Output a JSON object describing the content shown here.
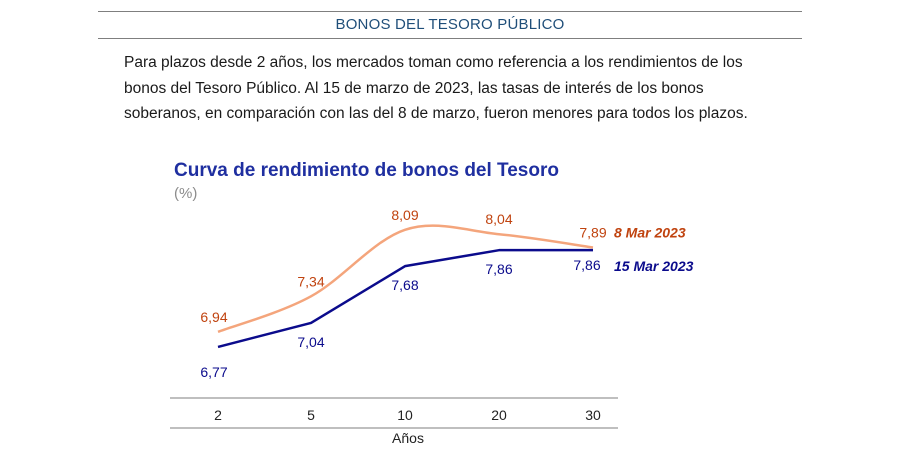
{
  "section": {
    "title": "BONOS DEL TESORO PÚBLICO"
  },
  "intro": {
    "text": "Para plazos desde 2 años, los mercados toman como referencia a los rendimientos de los bonos del Tesoro Público. Al 15 de marzo de 2023, las tasas de interés de los bonos soberanos, en comparación con las del 8 de marzo, fueron menores para todos los plazos."
  },
  "chart_data": {
    "type": "line",
    "title": "Curva de rendimiento de bonos del Tesoro",
    "unit": "(%)",
    "xlabel": "Años",
    "ylabel": "",
    "categories": [
      "2",
      "5",
      "10",
      "20",
      "30"
    ],
    "ylim": [
      6.6,
      8.2
    ],
    "grid": false,
    "series": [
      {
        "name": "8 Mar 2023",
        "values": [
          6.94,
          7.34,
          8.09,
          8.04,
          7.89
        ],
        "labels": [
          "6,94",
          "7,34",
          "8,09",
          "8,04",
          "7,89"
        ],
        "color": "#f4a57c",
        "label_color": "#c0430f",
        "smooth": true
      },
      {
        "name": "15 Mar 2023",
        "values": [
          6.77,
          7.04,
          7.68,
          7.86,
          7.86
        ],
        "labels": [
          "6,77",
          "7,04",
          "7,68",
          "7,86",
          "7,86"
        ],
        "color": "#0b0b8c",
        "label_color": "#0b0b8c",
        "smooth": false
      }
    ]
  }
}
